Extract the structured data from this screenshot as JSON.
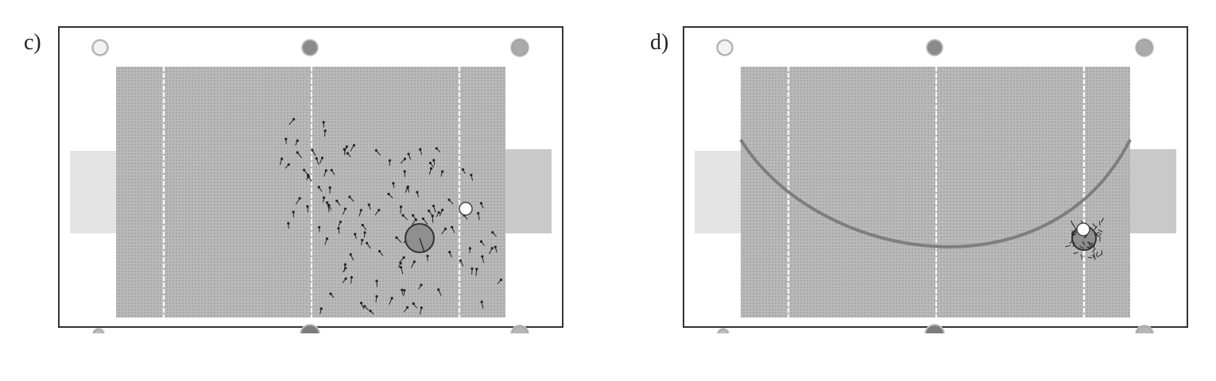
{
  "panels": [
    {
      "label": "c)",
      "overlay": "particles"
    },
    {
      "label": "d)",
      "overlay": "arc"
    }
  ],
  "colors": {
    "frame": "#333333",
    "field": "#b9b9b9",
    "field_dots": "#9a9a9a",
    "goal_area": "#e4e4e4",
    "goal_area_right": "#c9c9c9",
    "robot": "#8f8f8f",
    "ball": "#ffffff",
    "particle": "#222222",
    "arc": "#7e7e7e"
  },
  "icons": {
    "landmark": "landmark-marker-icon",
    "robot": "robot-circle-icon",
    "ball": "ball-icon",
    "particle": "particle-arrow-icon"
  }
}
